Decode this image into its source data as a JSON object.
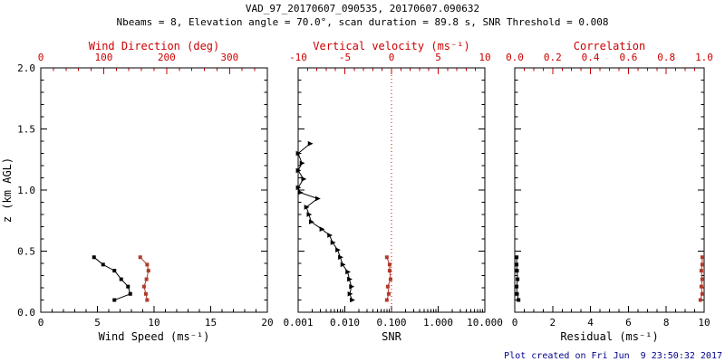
{
  "header": {
    "title": "VAD_97_20170607_090535, 20170607.090632",
    "subtitle": "Nbeams = 8, Elevation angle = 70.0°, scan duration = 89.8 s, SNR Threshold = 0.008"
  },
  "footer": {
    "created": "Plot created on Fri Jun  9 23:50:32 2017"
  },
  "colors": {
    "background": "#ffffff",
    "axis_black": "#000000",
    "axis_red": "#cc0000",
    "series_red": "#b23a2a",
    "footer_blue": "#00008b"
  },
  "chart_data": {
    "type": "line",
    "title": "VAD_97_20170607_090535, 20170607.090632",
    "y_axis": {
      "label": "z (km AGL)",
      "range": [
        0.0,
        2.0
      ],
      "tick_values": [
        0.0,
        0.5,
        1.0,
        1.5,
        2.0
      ],
      "tick_labels": [
        "0.0",
        "0.5",
        "1.0",
        "1.5",
        "2.0"
      ],
      "minor_step": 0.1
    },
    "panels": [
      {
        "name": "wind",
        "bottom_axis": {
          "label": "Wind Speed (ms⁻¹)",
          "scale": "linear",
          "range": [
            0,
            20
          ],
          "tick_values": [
            0,
            5,
            10,
            15,
            20
          ],
          "tick_labels": [
            "0",
            "5",
            "10",
            "15",
            "20"
          ],
          "minor_step": 1
        },
        "top_axis": {
          "label": "Wind Direction (deg)",
          "scale": "linear",
          "range": [
            0,
            360
          ],
          "tick_values": [
            0,
            100,
            200,
            300
          ],
          "tick_labels": [
            "0",
            "100",
            "200",
            "300"
          ],
          "minor_step": 20
        },
        "series": [
          {
            "name": "wind-speed",
            "axis": "bottom",
            "color": "black",
            "marker": "square",
            "z": [
              0.45,
              0.39,
              0.34,
              0.27,
              0.21,
              0.15,
              0.1
            ],
            "v": [
              4.7,
              5.5,
              6.5,
              7.1,
              7.7,
              7.9,
              6.5
            ]
          },
          {
            "name": "wind-direction",
            "axis": "top",
            "color": "red",
            "marker": "square",
            "z": [
              0.45,
              0.39,
              0.34,
              0.27,
              0.21,
              0.15,
              0.1
            ],
            "v": [
              158,
              169,
              171,
              168,
              164,
              167,
              169
            ]
          }
        ]
      },
      {
        "name": "snr",
        "bottom_axis": {
          "label": "SNR",
          "scale": "log",
          "range": [
            0.001,
            10.0
          ],
          "tick_values": [
            0.001,
            0.01,
            0.1,
            1.0,
            10.0
          ],
          "tick_labels": [
            "0.001",
            "0.010",
            "0.100",
            "1.000",
            "10.000"
          ],
          "minor_step": 0
        },
        "top_axis": {
          "label": "Vertical velocity (ms⁻¹)",
          "scale": "linear",
          "range": [
            -10,
            10
          ],
          "tick_values": [
            -10,
            -5,
            0,
            5,
            10
          ],
          "tick_labels": [
            "-10",
            "-5",
            "0",
            "5",
            "10"
          ],
          "minor_step": 1
        },
        "ref_line": {
          "axis": "top",
          "value": 0,
          "style": "dotted",
          "color": "red"
        },
        "series": [
          {
            "name": "snr-profile",
            "axis": "bottom",
            "color": "black",
            "marker": "triangle",
            "z": [
              1.38,
              1.3,
              1.22,
              1.16,
              1.09,
              1.02,
              0.98,
              0.93,
              0.86,
              0.8,
              0.74,
              0.68,
              0.63,
              0.57,
              0.51,
              0.45,
              0.39,
              0.33,
              0.27,
              0.21,
              0.15,
              0.1
            ],
            "v": [
              0.0018,
              0.001,
              0.0012,
              0.001,
              0.0013,
              0.001,
              0.0011,
              0.0026,
              0.0015,
              0.0017,
              0.0019,
              0.0032,
              0.0047,
              0.0055,
              0.007,
              0.008,
              0.009,
              0.0115,
              0.0125,
              0.0138,
              0.0128,
              0.0143
            ]
          },
          {
            "name": "vertical-velocity",
            "axis": "top",
            "color": "red",
            "marker": "square",
            "z": [
              0.45,
              0.39,
              0.34,
              0.27,
              0.21,
              0.15,
              0.1
            ],
            "v": [
              -0.5,
              -0.2,
              -0.2,
              -0.1,
              -0.4,
              -0.3,
              -0.5
            ]
          }
        ]
      },
      {
        "name": "residual",
        "bottom_axis": {
          "label": "Residual (ms⁻¹)",
          "scale": "linear",
          "range": [
            0,
            10
          ],
          "tick_values": [
            0,
            2,
            4,
            6,
            8,
            10
          ],
          "tick_labels": [
            "0",
            "2",
            "4",
            "6",
            "8",
            "10"
          ],
          "minor_step": 0.5
        },
        "top_axis": {
          "label": "Correlation",
          "scale": "linear",
          "range": [
            0.0,
            1.0
          ],
          "tick_values": [
            0.0,
            0.2,
            0.4,
            0.6,
            0.8,
            1.0
          ],
          "tick_labels": [
            "0.0",
            "0.2",
            "0.4",
            "0.6",
            "0.8",
            "1.0"
          ],
          "minor_step": 0.05
        },
        "series": [
          {
            "name": "residual-profile",
            "axis": "bottom",
            "color": "black",
            "marker": "square",
            "z": [
              0.45,
              0.39,
              0.34,
              0.27,
              0.21,
              0.15,
              0.1
            ],
            "v": [
              0.1,
              0.1,
              0.12,
              0.15,
              0.1,
              0.12,
              0.2
            ]
          },
          {
            "name": "correlation-profile",
            "axis": "top",
            "color": "red",
            "marker": "square",
            "z": [
              0.45,
              0.39,
              0.34,
              0.27,
              0.21,
              0.15,
              0.1
            ],
            "v": [
              0.99,
              0.99,
              0.985,
              0.99,
              0.985,
              0.99,
              0.98
            ]
          }
        ]
      }
    ]
  }
}
